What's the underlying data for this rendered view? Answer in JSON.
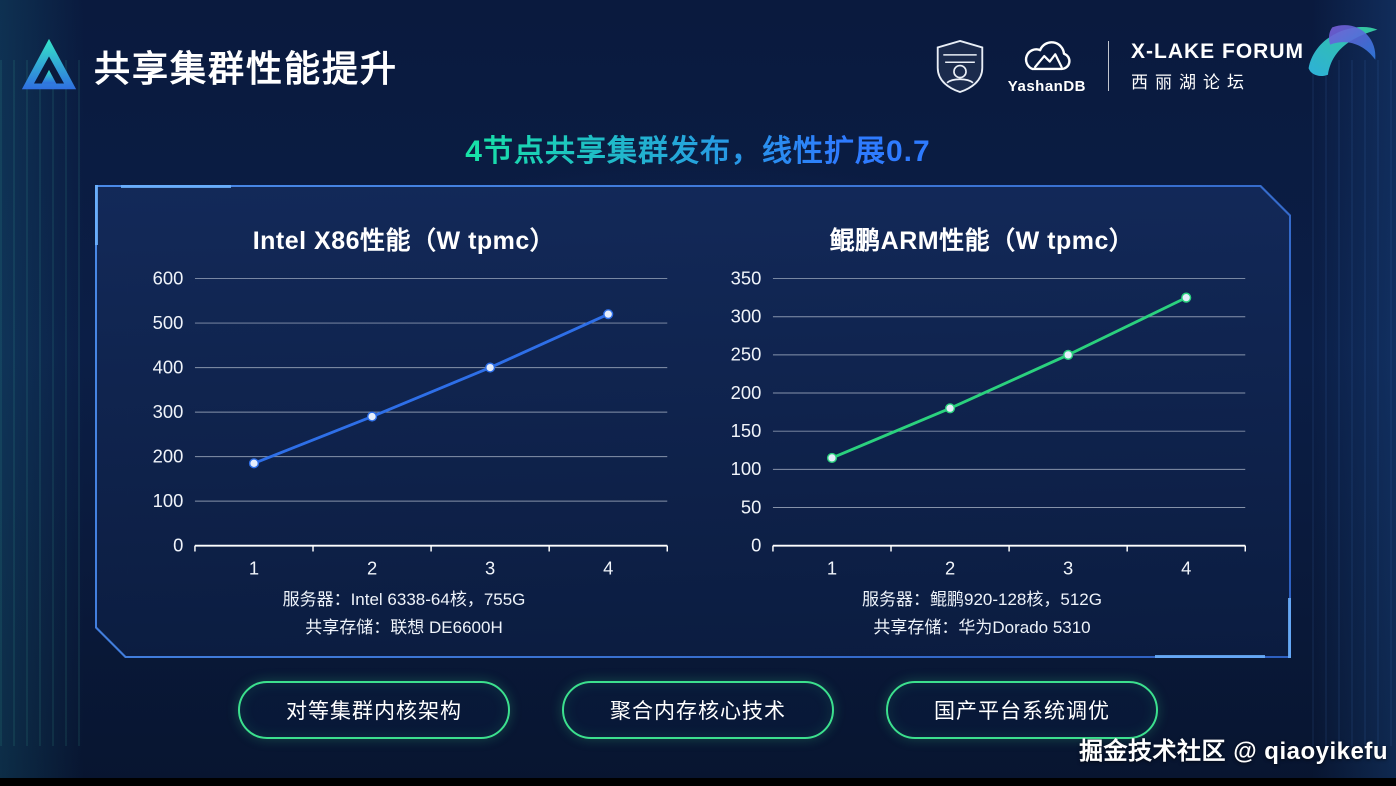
{
  "header": {
    "title": "共享集群性能提升",
    "yashandb_label": "YashanDB",
    "forum_title": "X-LAKE FORUM",
    "forum_subtitle": "西丽湖论坛"
  },
  "subtitle": "4节点共享集群发布，线性扩展0.7",
  "colors": {
    "intel_line": "#2e6fe8",
    "arm_line": "#2bd17e",
    "accent_green": "#3ce08e",
    "panel_border": "#2d5fc0",
    "subtitle_gradient_start": "#17e3a6",
    "subtitle_gradient_end": "#2e7bff"
  },
  "chart_data": [
    {
      "type": "line",
      "title": "Intel X86性能（W tpmc）",
      "x": [
        1,
        2,
        3,
        4
      ],
      "values": [
        185,
        290,
        400,
        520
      ],
      "ylim": [
        0,
        600
      ],
      "yticks": [
        0,
        100,
        200,
        300,
        400,
        500,
        600
      ],
      "xlabel": "",
      "ylabel": "",
      "grid": true,
      "legend": "none",
      "line_color": "#2e6fe8",
      "caption": [
        "服务器：Intel 6338-64核，755G",
        "共享存储：联想 DE6600H"
      ]
    },
    {
      "type": "line",
      "title": "鲲鹏ARM性能（W tpmc）",
      "x": [
        1,
        2,
        3,
        4
      ],
      "values": [
        115,
        180,
        250,
        325
      ],
      "ylim": [
        0,
        350
      ],
      "yticks": [
        0,
        50,
        100,
        150,
        200,
        250,
        300,
        350
      ],
      "xlabel": "",
      "ylabel": "",
      "grid": true,
      "legend": "none",
      "line_color": "#2bd17e",
      "caption": [
        "服务器：鲲鹏920-128核，512G",
        "共享存储：华为Dorado 5310"
      ]
    }
  ],
  "footer": {
    "buttons": [
      "对等集群内核架构",
      "聚合内存核心技术",
      "国产平台系统调优"
    ]
  },
  "watermark": "掘金技术社区 @ qiaoyikefu"
}
